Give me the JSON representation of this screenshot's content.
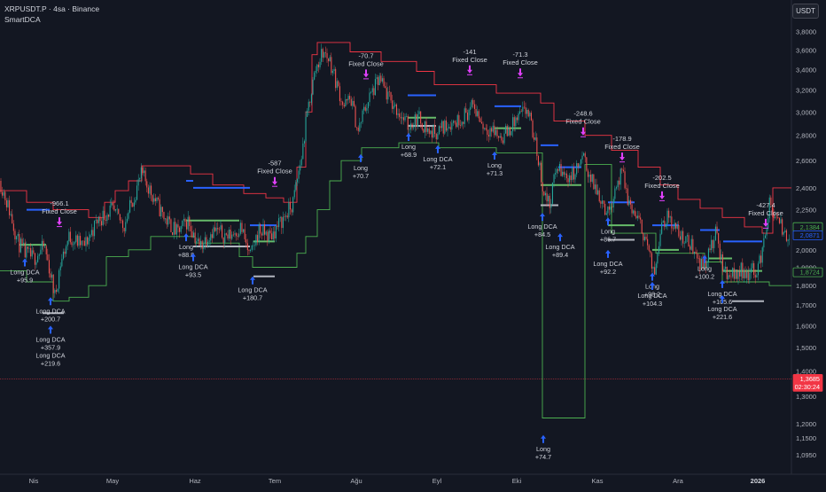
{
  "header": {
    "symbol_line": "XRPUSDT.P · 4sa · Binance",
    "indicator": "SmartDCA",
    "currency_button": "USDT"
  },
  "colors": {
    "background": "#131722",
    "upper_band": "#f23645",
    "lower_band": "#4caf50",
    "candle_up": "#26a69a",
    "candle_down": "#ef5350",
    "marker": "#2962ff",
    "exit_marker": "#e040fb",
    "dca_level_blue": "#2962ff",
    "dca_level_green": "#66bb6a",
    "dca_level_gray": "#b2b5be",
    "price_line": "#f23645"
  },
  "chart_data": {
    "type": "candlestick",
    "x_axis": {
      "ticks": [
        "Nis",
        "May",
        "Haz",
        "Tem",
        "Ağu",
        "Eyl",
        "Eki",
        "Kas",
        "Ara",
        "2026"
      ]
    },
    "y_axis": {
      "scale": "log",
      "range": [
        1.03,
        4.1
      ],
      "ticks": [
        "3,8000",
        "3,6000",
        "3,4000",
        "3,2000",
        "3,0000",
        "2,8000",
        "2,6000",
        "2,4000",
        "2,2500",
        "2,1000",
        "2,0000",
        "1,9000",
        "1,8000",
        "1,7000",
        "1,6000",
        "1,5000",
        "1,4000",
        "1,3000",
        "1,2000",
        "1,1500",
        "1,0950"
      ]
    },
    "price_labels": [
      {
        "value": "2,1384",
        "price": 2.1384,
        "style": "green-outline"
      },
      {
        "value": "2,0871",
        "price": 2.0871,
        "style": "blue-outline"
      },
      {
        "value": "1,8724",
        "price": 1.8724,
        "style": "green-outline"
      },
      {
        "value": "1,3685",
        "price": 1.3685,
        "style": "red-fill",
        "sub": "02:30:24"
      }
    ],
    "current_price": 1.3685,
    "price_path": [
      [
        0,
        2.45
      ],
      [
        12,
        2.22
      ],
      [
        20,
        2.05
      ],
      [
        28,
        1.98
      ],
      [
        38,
        1.95
      ],
      [
        50,
        2.02
      ],
      [
        58,
        1.84
      ],
      [
        62,
        1.74
      ],
      [
        68,
        1.92
      ],
      [
        78,
        2.08
      ],
      [
        95,
        2.02
      ],
      [
        110,
        2.18
      ],
      [
        125,
        2.25
      ],
      [
        140,
        2.15
      ],
      [
        150,
        2.32
      ],
      [
        160,
        2.5
      ],
      [
        172,
        2.35
      ],
      [
        185,
        2.2
      ],
      [
        200,
        2.1
      ],
      [
        212,
        2.18
      ],
      [
        225,
        2.02
      ],
      [
        240,
        2.12
      ],
      [
        258,
        2.08
      ],
      [
        272,
        2.14
      ],
      [
        282,
        1.95
      ],
      [
        292,
        2.12
      ],
      [
        305,
        2.08
      ],
      [
        318,
        2.18
      ],
      [
        330,
        2.28
      ],
      [
        340,
        2.62
      ],
      [
        348,
        3.05
      ],
      [
        356,
        3.4
      ],
      [
        364,
        3.58
      ],
      [
        372,
        3.5
      ],
      [
        380,
        3.25
      ],
      [
        388,
        3.05
      ],
      [
        396,
        3.12
      ],
      [
        404,
        2.82
      ],
      [
        410,
        3.0
      ],
      [
        418,
        3.15
      ],
      [
        428,
        3.3
      ],
      [
        440,
        3.1
      ],
      [
        450,
        3.0
      ],
      [
        460,
        2.88
      ],
      [
        472,
        2.95
      ],
      [
        485,
        2.82
      ],
      [
        495,
        2.84
      ],
      [
        505,
        2.9
      ],
      [
        515,
        2.92
      ],
      [
        525,
        2.98
      ],
      [
        535,
        3.05
      ],
      [
        545,
        2.88
      ],
      [
        555,
        2.85
      ],
      [
        565,
        2.78
      ],
      [
        575,
        2.85
      ],
      [
        585,
        2.95
      ],
      [
        595,
        3.02
      ],
      [
        605,
        2.7
      ],
      [
        613,
        2.38
      ],
      [
        620,
        2.28
      ],
      [
        628,
        2.55
      ],
      [
        638,
        2.48
      ],
      [
        648,
        2.5
      ],
      [
        658,
        2.62
      ],
      [
        668,
        2.44
      ],
      [
        678,
        2.33
      ],
      [
        686,
        2.22
      ],
      [
        694,
        2.4
      ],
      [
        702,
        2.5
      ],
      [
        710,
        2.28
      ],
      [
        718,
        2.2
      ],
      [
        728,
        2.08
      ],
      [
        738,
        1.84
      ],
      [
        746,
        2.18
      ],
      [
        756,
        2.2
      ],
      [
        765,
        2.1
      ],
      [
        775,
        2.05
      ],
      [
        785,
        2.0
      ],
      [
        792,
        1.9
      ],
      [
        800,
        1.98
      ],
      [
        808,
        2.1
      ],
      [
        816,
        1.88
      ],
      [
        826,
        1.86
      ],
      [
        836,
        1.88
      ],
      [
        846,
        1.87
      ],
      [
        856,
        1.9
      ],
      [
        862,
        2.05
      ],
      [
        868,
        2.28
      ],
      [
        876,
        2.18
      ],
      [
        885,
        2.1
      ],
      [
        893,
        2.08
      ]
    ],
    "upper_band_path": [
      [
        0,
        2.38
      ],
      [
        30,
        2.38
      ],
      [
        30,
        2.3
      ],
      [
        60,
        2.3
      ],
      [
        60,
        2.25
      ],
      [
        100,
        2.25
      ],
      [
        100,
        2.2
      ],
      [
        118,
        2.2
      ],
      [
        118,
        2.3
      ],
      [
        130,
        2.3
      ],
      [
        130,
        2.38
      ],
      [
        145,
        2.38
      ],
      [
        145,
        2.45
      ],
      [
        160,
        2.45
      ],
      [
        160,
        2.56
      ],
      [
        215,
        2.56
      ],
      [
        215,
        2.5
      ],
      [
        240,
        2.5
      ],
      [
        240,
        2.42
      ],
      [
        275,
        2.42
      ],
      [
        275,
        2.36
      ],
      [
        300,
        2.36
      ],
      [
        300,
        2.33
      ],
      [
        320,
        2.33
      ],
      [
        320,
        2.3
      ],
      [
        335,
        2.3
      ],
      [
        335,
        2.55
      ],
      [
        345,
        2.55
      ],
      [
        345,
        3.0
      ],
      [
        352,
        3.0
      ],
      [
        352,
        3.55
      ],
      [
        358,
        3.55
      ],
      [
        358,
        3.68
      ],
      [
        395,
        3.68
      ],
      [
        395,
        3.58
      ],
      [
        430,
        3.58
      ],
      [
        430,
        3.48
      ],
      [
        470,
        3.48
      ],
      [
        470,
        3.38
      ],
      [
        490,
        3.38
      ],
      [
        490,
        3.25
      ],
      [
        560,
        3.25
      ],
      [
        560,
        3.17
      ],
      [
        610,
        3.17
      ],
      [
        610,
        3.08
      ],
      [
        625,
        3.08
      ],
      [
        625,
        2.92
      ],
      [
        660,
        2.92
      ],
      [
        660,
        2.8
      ],
      [
        690,
        2.8
      ],
      [
        690,
        2.68
      ],
      [
        720,
        2.68
      ],
      [
        720,
        2.55
      ],
      [
        745,
        2.55
      ],
      [
        745,
        2.42
      ],
      [
        765,
        2.42
      ],
      [
        765,
        2.32
      ],
      [
        790,
        2.32
      ],
      [
        790,
        2.26
      ],
      [
        815,
        2.26
      ],
      [
        815,
        2.2
      ],
      [
        840,
        2.2
      ],
      [
        840,
        2.14
      ],
      [
        860,
        2.14
      ],
      [
        860,
        2.1
      ],
      [
        872,
        2.1
      ],
      [
        872,
        2.4
      ],
      [
        893,
        2.4
      ]
    ],
    "lower_band_path": [
      [
        0,
        1.88
      ],
      [
        30,
        1.88
      ],
      [
        30,
        1.82
      ],
      [
        60,
        1.82
      ],
      [
        60,
        1.72
      ],
      [
        78,
        1.72
      ],
      [
        78,
        1.74
      ],
      [
        100,
        1.74
      ],
      [
        100,
        1.8
      ],
      [
        120,
        1.8
      ],
      [
        120,
        1.96
      ],
      [
        145,
        1.96
      ],
      [
        145,
        2.0
      ],
      [
        170,
        2.0
      ],
      [
        170,
        2.08
      ],
      [
        220,
        2.08
      ],
      [
        220,
        2.04
      ],
      [
        270,
        2.04
      ],
      [
        270,
        1.96
      ],
      [
        285,
        1.96
      ],
      [
        285,
        1.9
      ],
      [
        335,
        1.9
      ],
      [
        335,
        1.98
      ],
      [
        345,
        1.98
      ],
      [
        345,
        2.08
      ],
      [
        358,
        2.08
      ],
      [
        358,
        2.25
      ],
      [
        372,
        2.25
      ],
      [
        372,
        2.45
      ],
      [
        385,
        2.45
      ],
      [
        385,
        2.6
      ],
      [
        408,
        2.6
      ],
      [
        408,
        2.7
      ],
      [
        450,
        2.7
      ],
      [
        450,
        2.74
      ],
      [
        495,
        2.74
      ],
      [
        495,
        2.7
      ],
      [
        560,
        2.7
      ],
      [
        560,
        2.66
      ],
      [
        612,
        2.66
      ],
      [
        612,
        1.22
      ],
      [
        660,
        1.22
      ],
      [
        660,
        2.57
      ],
      [
        690,
        2.57
      ],
      [
        690,
        2.1
      ],
      [
        740,
        2.1
      ],
      [
        740,
        1.98
      ],
      [
        795,
        1.98
      ],
      [
        795,
        1.93
      ],
      [
        815,
        1.93
      ],
      [
        815,
        1.82
      ],
      [
        868,
        1.82
      ],
      [
        868,
        1.8
      ],
      [
        893,
        1.8
      ]
    ],
    "dca_levels": [
      {
        "x1": 30,
        "x2": 56,
        "price": 2.25,
        "color": "blue"
      },
      {
        "x1": 22,
        "x2": 52,
        "price": 2.03,
        "color": "green"
      },
      {
        "x1": 48,
        "x2": 72,
        "price": 1.66,
        "color": "gray"
      },
      {
        "x1": 210,
        "x2": 218,
        "price": 2.45,
        "color": "blue"
      },
      {
        "x1": 218,
        "x2": 282,
        "price": 2.4,
        "color": "blue"
      },
      {
        "x1": 282,
        "x2": 312,
        "price": 2.15,
        "color": "blue"
      },
      {
        "x1": 210,
        "x2": 270,
        "price": 2.18,
        "color": "green"
      },
      {
        "x1": 286,
        "x2": 310,
        "price": 2.05,
        "color": "green"
      },
      {
        "x1": 218,
        "x2": 282,
        "price": 2.02,
        "color": "gray"
      },
      {
        "x1": 286,
        "x2": 310,
        "price": 1.85,
        "color": "gray"
      },
      {
        "x1": 460,
        "x2": 492,
        "price": 3.15,
        "color": "blue"
      },
      {
        "x1": 460,
        "x2": 492,
        "price": 2.95,
        "color": "green"
      },
      {
        "x1": 460,
        "x2": 492,
        "price": 2.88,
        "color": "gray"
      },
      {
        "x1": 558,
        "x2": 588,
        "price": 3.05,
        "color": "blue"
      },
      {
        "x1": 558,
        "x2": 588,
        "price": 2.86,
        "color": "green"
      },
      {
        "x1": 610,
        "x2": 630,
        "price": 2.72,
        "color": "blue"
      },
      {
        "x1": 630,
        "x2": 656,
        "price": 2.55,
        "color": "blue"
      },
      {
        "x1": 610,
        "x2": 656,
        "price": 2.42,
        "color": "green"
      },
      {
        "x1": 610,
        "x2": 630,
        "price": 2.28,
        "color": "gray"
      },
      {
        "x1": 686,
        "x2": 716,
        "price": 2.3,
        "color": "blue"
      },
      {
        "x1": 686,
        "x2": 716,
        "price": 2.15,
        "color": "green"
      },
      {
        "x1": 686,
        "x2": 716,
        "price": 2.06,
        "color": "gray"
      },
      {
        "x1": 736,
        "x2": 766,
        "price": 2.15,
        "color": "blue"
      },
      {
        "x1": 736,
        "x2": 766,
        "price": 2.0,
        "color": "green"
      },
      {
        "x1": 790,
        "x2": 812,
        "price": 2.12,
        "color": "blue"
      },
      {
        "x1": 800,
        "x2": 826,
        "price": 1.95,
        "color": "green"
      },
      {
        "x1": 816,
        "x2": 860,
        "price": 2.05,
        "color": "blue"
      },
      {
        "x1": 816,
        "x2": 860,
        "price": 1.88,
        "color": "green"
      },
      {
        "x1": 826,
        "x2": 862,
        "price": 1.72,
        "color": "gray"
      }
    ],
    "entries": [
      {
        "x": 28,
        "price": 1.95,
        "lines": [
          "Long DCA",
          "+95.9"
        ]
      },
      {
        "x": 57,
        "price": 1.74,
        "lines": [
          "Long DCA",
          "+200.7"
        ]
      },
      {
        "x": 57,
        "price": 1.6,
        "lines": [
          "Long DCA",
          "+357.9",
          "Long DCA",
          "+219.6"
        ]
      },
      {
        "x": 210,
        "price": 2.1,
        "lines": [
          "Long",
          "+88.8"
        ]
      },
      {
        "x": 218,
        "price": 1.98,
        "lines": [
          "Long DCA",
          "+93.5"
        ]
      },
      {
        "x": 285,
        "price": 1.85,
        "lines": [
          "Long DCA",
          "+180.7"
        ]
      },
      {
        "x": 407,
        "price": 2.65,
        "lines": [
          "Long",
          "+70.7"
        ]
      },
      {
        "x": 461,
        "price": 2.82,
        "lines": [
          "Long",
          "+68.9"
        ]
      },
      {
        "x": 494,
        "price": 2.72,
        "lines": [
          "Long DCA",
          "+72.1"
        ]
      },
      {
        "x": 558,
        "price": 2.67,
        "lines": [
          "Long",
          "+71.3"
        ]
      },
      {
        "x": 612,
        "price": 2.23,
        "lines": [
          "Long DCA",
          "+84.5"
        ]
      },
      {
        "x": 632,
        "price": 2.1,
        "lines": [
          "Long DCA",
          "+89.4"
        ]
      },
      {
        "x": 613,
        "price": 1.16,
        "lines": [
          "Long",
          "+74.7"
        ]
      },
      {
        "x": 686,
        "price": 2.2,
        "lines": [
          "Long",
          "+86.7"
        ]
      },
      {
        "x": 686,
        "price": 2.0,
        "lines": [
          "Long DCA",
          "+92.2"
        ]
      },
      {
        "x": 736,
        "price": 1.87,
        "lines": [
          "Long",
          "+98.2"
        ]
      },
      {
        "x": 736,
        "price": 1.82,
        "lines": [
          "Long DCA",
          "+104.3"
        ]
      },
      {
        "x": 795,
        "price": 1.97,
        "lines": [
          "Long",
          "+100.2"
        ]
      },
      {
        "x": 815,
        "price": 1.83,
        "lines": [
          "Long DCA",
          "+105.6"
        ]
      },
      {
        "x": 815,
        "price": 1.75,
        "lines": [
          "Long DCA",
          "+221.6"
        ]
      }
    ],
    "exits": [
      {
        "x": 67,
        "price": 2.15,
        "pnl": "-966.1",
        "label": "Fixed Close"
      },
      {
        "x": 310,
        "price": 2.42,
        "pnl": "-587",
        "label": "Fixed Close"
      },
      {
        "x": 413,
        "price": 3.32,
        "pnl": "-70.7",
        "label": "Fixed Close"
      },
      {
        "x": 530,
        "price": 3.36,
        "pnl": "-141",
        "label": "Fixed Close"
      },
      {
        "x": 587,
        "price": 3.33,
        "pnl": "-71.3",
        "label": "Fixed Close"
      },
      {
        "x": 658,
        "price": 2.8,
        "pnl": "-248.6",
        "label": "Fixed Close"
      },
      {
        "x": 702,
        "price": 2.6,
        "pnl": "-178.9",
        "label": "Fixed Close"
      },
      {
        "x": 747,
        "price": 2.32,
        "pnl": "-202.5",
        "label": "Fixed Close"
      },
      {
        "x": 864,
        "price": 2.14,
        "pnl": "-427.4",
        "label": "Fixed Close"
      }
    ]
  }
}
